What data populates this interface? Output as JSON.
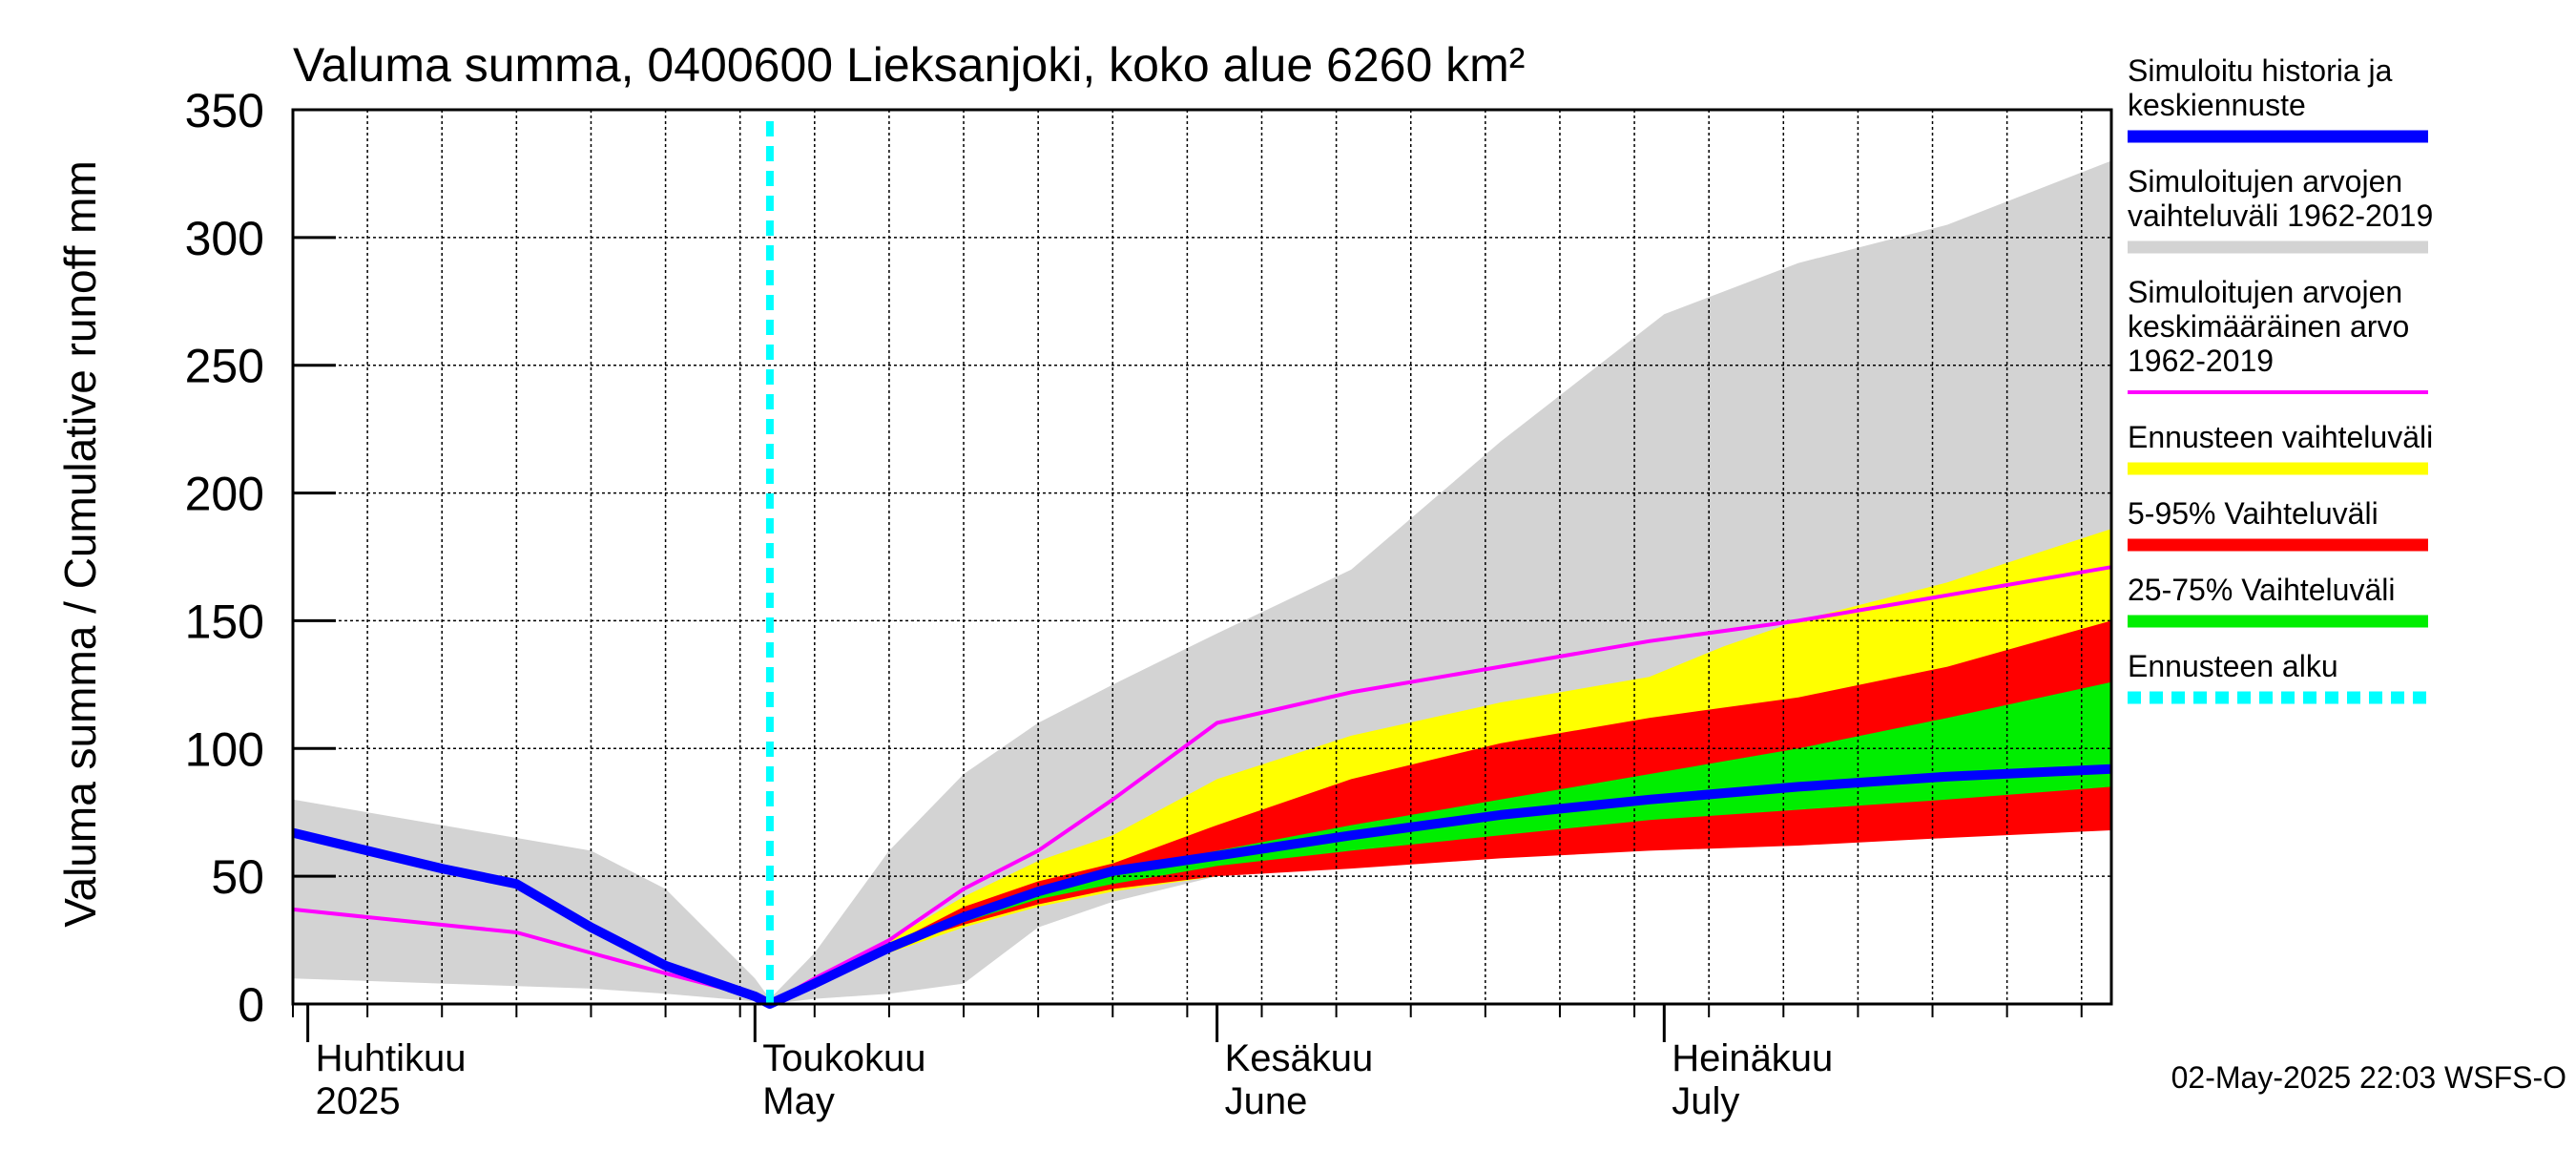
{
  "chart_data": {
    "type": "area",
    "title": "Valuma summa, 0400600 Lieksanjoki, koko alue 6260 km²",
    "ylabel": "Valuma summa / Cumulative runoff    mm",
    "ylim": [
      0,
      350
    ],
    "y_ticks": [
      "0",
      "50",
      "100",
      "150",
      "200",
      "250",
      "300",
      "350"
    ],
    "x_range": [
      "2025-03-31",
      "2025-07-31"
    ],
    "month_labels": [
      {
        "date": "2025-04-01",
        "fi": "Huhtikuu",
        "en": "2025"
      },
      {
        "date": "2025-05-01",
        "fi": "Toukokuu",
        "en": "May"
      },
      {
        "date": "2025-06-01",
        "fi": "Kesäkuu",
        "en": "June"
      },
      {
        "date": "2025-07-01",
        "fi": "Heinäkuu",
        "en": "July"
      }
    ],
    "forecast_start": "2025-05-02",
    "grid": true,
    "legend_position": "right",
    "footer": "02-May-2025 22:03 WSFS-O",
    "series": [
      {
        "name": "Simuloitujen arvojen vaihteluväli 1962-2019",
        "kind": "band",
        "color": "#d3d3d3",
        "x": [
          "2025-03-31",
          "2025-04-10",
          "2025-04-20",
          "2025-04-25",
          "2025-05-01",
          "2025-05-02",
          "2025-05-05",
          "2025-05-10",
          "2025-05-15",
          "2025-05-20",
          "2025-05-25",
          "2025-06-01",
          "2025-06-10",
          "2025-06-20",
          "2025-07-01",
          "2025-07-10",
          "2025-07-20",
          "2025-07-31"
        ],
        "upper": [
          80,
          70,
          60,
          45,
          10,
          2,
          20,
          60,
          90,
          110,
          125,
          145,
          170,
          220,
          270,
          290,
          305,
          330
        ],
        "lower": [
          10,
          8,
          6,
          4,
          1,
          0,
          2,
          4,
          8,
          30,
          40,
          50,
          55,
          62,
          70,
          75,
          80,
          88
        ]
      },
      {
        "name": "Ennusteen vaihteluväli",
        "kind": "band",
        "color": "#ffff00",
        "x": [
          "2025-05-02",
          "2025-05-05",
          "2025-05-10",
          "2025-05-15",
          "2025-05-20",
          "2025-05-25",
          "2025-06-01",
          "2025-06-10",
          "2025-06-20",
          "2025-06-30",
          "2025-07-05",
          "2025-07-10",
          "2025-07-20",
          "2025-07-31"
        ],
        "upper": [
          0,
          8,
          25,
          42,
          56,
          66,
          88,
          105,
          118,
          128,
          140,
          150,
          165,
          186
        ],
        "lower": [
          0,
          8,
          20,
          30,
          38,
          44,
          50,
          55,
          58,
          62,
          64,
          65,
          67,
          70
        ]
      },
      {
        "name": "5-95% Vaihteluväli",
        "kind": "band",
        "color": "#ff0000",
        "x": [
          "2025-05-02",
          "2025-05-05",
          "2025-05-10",
          "2025-05-15",
          "2025-05-20",
          "2025-05-25",
          "2025-06-01",
          "2025-06-10",
          "2025-06-20",
          "2025-06-30",
          "2025-07-10",
          "2025-07-20",
          "2025-07-31"
        ],
        "upper": [
          0,
          8,
          23,
          38,
          48,
          55,
          70,
          88,
          102,
          112,
          120,
          132,
          150
        ],
        "lower": [
          0,
          8,
          22,
          31,
          39,
          45,
          50,
          53,
          57,
          60,
          62,
          65,
          68
        ]
      },
      {
        "name": "25-75% Vaihteluväli",
        "kind": "band",
        "color": "#00ee00",
        "x": [
          "2025-05-02",
          "2025-05-05",
          "2025-05-10",
          "2025-05-15",
          "2025-05-20",
          "2025-05-25",
          "2025-06-01",
          "2025-06-10",
          "2025-06-20",
          "2025-06-30",
          "2025-07-10",
          "2025-07-20",
          "2025-07-31"
        ],
        "upper": [
          0,
          8,
          22,
          34,
          44,
          52,
          60,
          70,
          80,
          90,
          100,
          112,
          126
        ],
        "lower": [
          0,
          8,
          21,
          32,
          41,
          47,
          54,
          60,
          66,
          72,
          76,
          80,
          85
        ]
      },
      {
        "name": "Simuloitujen arvojen keskimääräinen arvo 1962-2019",
        "kind": "line",
        "color": "#ff00ff",
        "x": [
          "2025-03-31",
          "2025-04-05",
          "2025-04-10",
          "2025-04-15",
          "2025-04-20",
          "2025-04-25",
          "2025-05-01",
          "2025-05-02",
          "2025-05-05",
          "2025-05-10",
          "2025-05-15",
          "2025-05-20",
          "2025-05-25",
          "2025-06-01",
          "2025-06-10",
          "2025-06-20",
          "2025-06-30",
          "2025-07-10",
          "2025-07-20",
          "2025-07-31"
        ],
        "values": [
          37,
          34,
          31,
          28,
          20,
          12,
          3,
          0,
          10,
          25,
          45,
          60,
          80,
          110,
          122,
          132,
          142,
          150,
          160,
          171
        ]
      },
      {
        "name": "Simuloitu historia ja keskiennuste",
        "kind": "line",
        "color": "#0000ff",
        "x": [
          "2025-03-31",
          "2025-04-05",
          "2025-04-10",
          "2025-04-15",
          "2025-04-20",
          "2025-04-25",
          "2025-05-01",
          "2025-05-02",
          "2025-05-05",
          "2025-05-10",
          "2025-05-15",
          "2025-05-20",
          "2025-05-25",
          "2025-06-01",
          "2025-06-10",
          "2025-06-20",
          "2025-06-30",
          "2025-07-10",
          "2025-07-20",
          "2025-07-31"
        ],
        "values": [
          67,
          60,
          53,
          47,
          30,
          15,
          3,
          0,
          8,
          22,
          34,
          44,
          52,
          58,
          66,
          74,
          80,
          85,
          89,
          92
        ]
      }
    ],
    "forecast_line": {
      "name": "Ennusteen alku",
      "color": "#00ffff"
    },
    "legend": [
      {
        "lines": [
          "Simuloitu historia ja",
          "keskiennuste"
        ],
        "color": "#0000ff",
        "style": "solid"
      },
      {
        "lines": [
          "Simuloitujen arvojen",
          "vaihteluväli 1962-2019"
        ],
        "color": "#d3d3d3",
        "style": "solid"
      },
      {
        "lines": [
          "Simuloitujen arvojen",
          "keskimääräinen arvo",
          "   1962-2019"
        ],
        "color": "#ff00ff",
        "style": "thin"
      },
      {
        "lines": [
          "Ennusteen vaihteluväli"
        ],
        "color": "#ffff00",
        "style": "solid"
      },
      {
        "lines": [
          "5-95% Vaihteluväli"
        ],
        "color": "#ff0000",
        "style": "solid"
      },
      {
        "lines": [
          "25-75% Vaihteluväli"
        ],
        "color": "#00ee00",
        "style": "solid"
      },
      {
        "lines": [
          "Ennusteen alku"
        ],
        "color": "#00ffff",
        "style": "dashed"
      }
    ]
  }
}
